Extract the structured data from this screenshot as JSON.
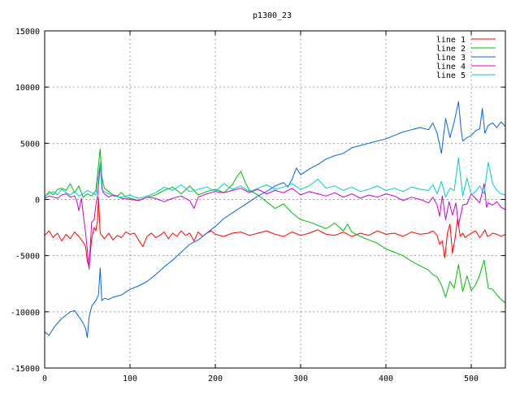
{
  "chart_data": {
    "type": "line",
    "title": "p1300_23",
    "xlabel": "",
    "ylabel": "",
    "xlim": [
      0,
      540
    ],
    "ylim": [
      -15000,
      15000
    ],
    "xticks": [
      0,
      100,
      200,
      300,
      400,
      500
    ],
    "yticks": [
      -15000,
      -10000,
      -5000,
      0,
      5000,
      10000,
      15000
    ],
    "grid": true,
    "legend_position": "top-right",
    "series": [
      {
        "name": "line 1",
        "color": "#ff0000",
        "x": [
          0,
          5,
          10,
          15,
          20,
          25,
          30,
          35,
          40,
          45,
          48,
          50,
          52,
          55,
          58,
          60,
          62,
          63,
          65,
          67,
          70,
          75,
          80,
          85,
          90,
          95,
          100,
          105,
          110,
          115,
          120,
          125,
          130,
          135,
          140,
          145,
          150,
          155,
          160,
          165,
          170,
          175,
          180,
          185,
          190,
          195,
          200,
          210,
          220,
          230,
          240,
          250,
          260,
          270,
          280,
          290,
          300,
          310,
          320,
          330,
          340,
          350,
          360,
          370,
          380,
          390,
          400,
          410,
          420,
          430,
          440,
          450,
          455,
          460,
          463,
          466,
          469,
          472,
          475,
          478,
          481,
          484,
          487,
          490,
          493,
          496,
          500,
          505,
          510,
          513,
          516,
          519,
          522,
          525,
          530,
          535,
          540
        ],
        "y": [
          -3200,
          -2800,
          -3400,
          -3000,
          -3700,
          -3100,
          -3500,
          -2900,
          -3300,
          -3800,
          -4200,
          -5500,
          -6000,
          -3500,
          -2500,
          -2800,
          -1800,
          200,
          -3000,
          -3200,
          -3500,
          -3000,
          -3600,
          -3200,
          -3400,
          -2900,
          -3100,
          -3000,
          -3600,
          -4200,
          -3300,
          -3000,
          -3400,
          -3200,
          -2900,
          -3500,
          -3000,
          -3300,
          -2800,
          -3200,
          -3000,
          -3700,
          -2900,
          -3300,
          -3000,
          -2800,
          -3100,
          -3300,
          -3000,
          -2900,
          -3200,
          -3000,
          -2800,
          -3100,
          -3300,
          -2900,
          -3200,
          -3000,
          -2700,
          -3100,
          -3200,
          -2900,
          -3300,
          -3000,
          -3200,
          -2800,
          -3100,
          -3000,
          -3300,
          -2900,
          -3100,
          -3000,
          -2800,
          -3200,
          -4000,
          -3700,
          -5200,
          -3000,
          -2200,
          -4800,
          -3500,
          -1700,
          -3300,
          -3000,
          -3400,
          -3200,
          -3000,
          -2800,
          -3400,
          -3100,
          -2700,
          -3300,
          -3200,
          -3000,
          -3100,
          -3300,
          -3100
        ]
      },
      {
        "name": "line 2",
        "color": "#00bb00",
        "x": [
          0,
          5,
          10,
          15,
          20,
          25,
          30,
          35,
          40,
          45,
          50,
          55,
          60,
          65,
          67,
          70,
          75,
          80,
          85,
          90,
          95,
          100,
          110,
          120,
          130,
          140,
          150,
          160,
          170,
          180,
          190,
          200,
          210,
          220,
          225,
          230,
          235,
          240,
          250,
          260,
          270,
          280,
          290,
          300,
          310,
          320,
          330,
          340,
          350,
          355,
          360,
          370,
          380,
          390,
          400,
          410,
          420,
          430,
          440,
          450,
          455,
          460,
          465,
          470,
          475,
          480,
          485,
          490,
          495,
          500,
          505,
          510,
          515,
          520,
          525,
          530,
          535,
          540
        ],
        "y": [
          200,
          700,
          400,
          900,
          1000,
          800,
          1400,
          600,
          1200,
          200,
          500,
          300,
          800,
          4500,
          2000,
          1000,
          700,
          400,
          300,
          600,
          200,
          100,
          -100,
          200,
          400,
          800,
          1100,
          500,
          1200,
          400,
          700,
          900,
          600,
          1300,
          2000,
          2500,
          1500,
          800,
          400,
          -200,
          -800,
          -400,
          -1200,
          -1800,
          -2000,
          -2300,
          -2600,
          -2100,
          -2800,
          -2200,
          -2900,
          -3300,
          -3600,
          -3900,
          -4400,
          -4700,
          -5000,
          -5500,
          -5900,
          -6300,
          -6700,
          -6900,
          -7600,
          -8700,
          -7300,
          -7900,
          -5800,
          -8200,
          -6800,
          -8100,
          -7600,
          -6700,
          -5400,
          -7900,
          -8000,
          -8500,
          -8900,
          -9200
        ]
      },
      {
        "name": "line 3",
        "color": "#0066dd",
        "x": [
          0,
          5,
          10,
          15,
          20,
          25,
          30,
          35,
          40,
          45,
          48,
          50,
          52,
          55,
          60,
          63,
          65,
          67,
          70,
          75,
          80,
          90,
          100,
          110,
          120,
          130,
          140,
          150,
          160,
          170,
          180,
          190,
          200,
          210,
          220,
          230,
          240,
          250,
          260,
          270,
          280,
          285,
          290,
          295,
          300,
          310,
          320,
          330,
          340,
          350,
          360,
          370,
          380,
          390,
          400,
          410,
          420,
          430,
          440,
          450,
          455,
          460,
          465,
          470,
          475,
          480,
          485,
          488,
          490,
          495,
          500,
          505,
          510,
          513,
          516,
          520,
          525,
          530,
          535,
          540
        ],
        "y": [
          -11800,
          -12100,
          -11500,
          -11000,
          -10600,
          -10300,
          -10000,
          -9900,
          -10400,
          -11000,
          -11500,
          -12300,
          -10500,
          -9500,
          -9000,
          -8500,
          -6100,
          -9000,
          -8800,
          -8900,
          -8700,
          -8500,
          -8000,
          -7700,
          -7300,
          -6700,
          -6000,
          -5400,
          -4700,
          -4000,
          -3600,
          -3000,
          -2400,
          -1700,
          -1200,
          -700,
          -200,
          300,
          700,
          1200,
          1500,
          1100,
          1800,
          2800,
          2200,
          2700,
          3100,
          3600,
          3900,
          4100,
          4600,
          4800,
          5000,
          5200,
          5400,
          5700,
          6000,
          6200,
          6400,
          6200,
          6800,
          5900,
          4100,
          7200,
          5500,
          6900,
          8700,
          6300,
          5200,
          5500,
          5700,
          6100,
          6300,
          8100,
          5900,
          6600,
          6800,
          6400,
          6900,
          6500
        ]
      },
      {
        "name": "line 4",
        "color": "#cc00cc",
        "x": [
          0,
          5,
          10,
          15,
          20,
          25,
          30,
          35,
          38,
          40,
          43,
          45,
          48,
          50,
          52,
          55,
          58,
          60,
          62,
          65,
          68,
          70,
          75,
          80,
          85,
          90,
          100,
          110,
          120,
          130,
          140,
          150,
          160,
          170,
          175,
          180,
          190,
          200,
          210,
          220,
          230,
          240,
          250,
          260,
          270,
          280,
          290,
          300,
          310,
          320,
          330,
          340,
          350,
          360,
          370,
          380,
          390,
          400,
          410,
          420,
          430,
          440,
          450,
          455,
          460,
          463,
          466,
          470,
          474,
          478,
          482,
          485,
          490,
          495,
          500,
          505,
          510,
          515,
          518,
          520,
          525,
          530,
          535,
          540
        ],
        "y": [
          100,
          300,
          200,
          100,
          400,
          500,
          200,
          300,
          -200,
          -1000,
          100,
          -1200,
          -3000,
          -4500,
          -6200,
          -2000,
          -1800,
          -500,
          300,
          3000,
          700,
          500,
          200,
          400,
          300,
          100,
          0,
          -100,
          200,
          100,
          -200,
          100,
          300,
          -100,
          -800,
          200,
          500,
          700,
          600,
          800,
          1000,
          600,
          900,
          500,
          800,
          600,
          1000,
          400,
          700,
          500,
          300,
          600,
          200,
          500,
          100,
          400,
          200,
          500,
          300,
          -100,
          200,
          0,
          -300,
          200,
          -500,
          -1500,
          300,
          -1800,
          -200,
          -1400,
          -300,
          -2300,
          -500,
          -400,
          500,
          100,
          -300,
          1400,
          -700,
          -300,
          -500,
          -200,
          -700,
          -900
        ]
      },
      {
        "name": "line 5",
        "color": "#00cccc",
        "x": [
          0,
          5,
          10,
          15,
          20,
          25,
          30,
          35,
          40,
          45,
          50,
          55,
          60,
          65,
          67,
          70,
          75,
          80,
          90,
          100,
          110,
          120,
          130,
          140,
          150,
          160,
          170,
          180,
          190,
          200,
          210,
          220,
          230,
          240,
          250,
          260,
          270,
          280,
          290,
          300,
          310,
          320,
          330,
          340,
          350,
          360,
          370,
          380,
          390,
          400,
          410,
          420,
          430,
          440,
          450,
          455,
          460,
          465,
          470,
          475,
          480,
          485,
          490,
          495,
          500,
          505,
          510,
          515,
          520,
          525,
          530,
          535,
          540
        ],
        "y": [
          300,
          500,
          700,
          400,
          900,
          600,
          400,
          700,
          300,
          500,
          800,
          600,
          400,
          3300,
          900,
          700,
          500,
          300,
          200,
          400,
          100,
          300,
          600,
          1100,
          800,
          1300,
          700,
          900,
          1100,
          700,
          1400,
          900,
          1200,
          700,
          1000,
          1300,
          900,
          1100,
          1400,
          900,
          1200,
          1800,
          1000,
          1200,
          800,
          1100,
          700,
          900,
          1200,
          800,
          1000,
          700,
          1100,
          900,
          800,
          1300,
          500,
          1600,
          200,
          1000,
          800,
          3700,
          300,
          1900,
          400,
          700,
          1200,
          500,
          3300,
          1400,
          800,
          500,
          400
        ]
      }
    ]
  }
}
